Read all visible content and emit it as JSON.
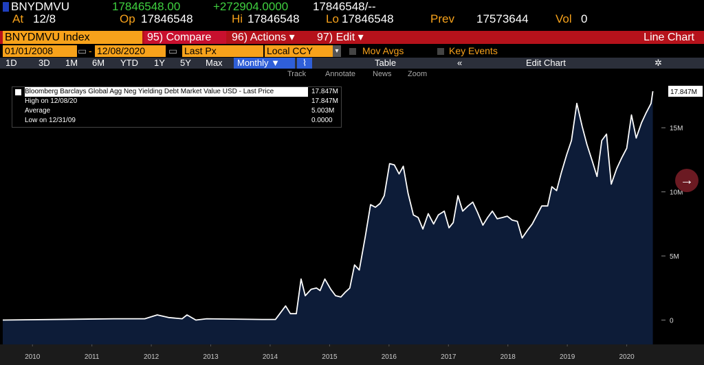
{
  "header": {
    "ticker": "BNYDMVU",
    "last": "17846548.00",
    "change": "+272904.0000",
    "bid_ask": "17846548/--",
    "at_label": "At",
    "at": "12/8",
    "op_label": "Op",
    "op": "17846548",
    "hi_label": "Hi",
    "hi": "17846548",
    "lo_label": "Lo",
    "lo": "17846548",
    "prev_label": "Prev",
    "prev": "17573644",
    "vol_label": "Vol",
    "vol": "0"
  },
  "menu": {
    "security": "BNYDMVU Index",
    "compare": "95) Compare",
    "actions": "96) Actions ▾",
    "edit": "97) Edit ▾",
    "view": "Line Chart"
  },
  "settings": {
    "start": "01/01/2008",
    "end": "12/08/2020",
    "field": "Last Px",
    "currency": "Local CCY",
    "mov_avgs": "Mov Avgs",
    "key_events": "Key Events"
  },
  "toolbar": {
    "ranges": [
      "1D",
      "3D",
      "1M",
      "6M",
      "YTD",
      "1Y",
      "5Y",
      "Max"
    ],
    "period": "Monthly ▼",
    "table": "Table",
    "edit_chart": "Edit Chart"
  },
  "tools": [
    "Track",
    "Annotate",
    "News",
    "Zoom"
  ],
  "chart_data": {
    "type": "area",
    "legend": {
      "title": "Bloomberg Barclays Global Agg Neg Yielding Debt Market Value USD - Last Price",
      "title_value": "17.847M",
      "rows": [
        {
          "label": "High on 12/08/20",
          "value": "17.847M"
        },
        {
          "label": "Average",
          "value": "5.003M"
        },
        {
          "label": "Low on 12/31/09",
          "value": "0.0000"
        }
      ]
    },
    "last_label": "17.847M",
    "line_color": "#ffffff",
    "fill_color": "#0d1c38",
    "x": [
      2010.0,
      2011.87,
      2012.39,
      2012.6,
      2012.79,
      2013.02,
      2013.1,
      2013.25,
      2013.43,
      2014.36,
      2014.59,
      2014.76,
      2014.84,
      2014.94,
      2015.02,
      2015.09,
      2015.19,
      2015.28,
      2015.34,
      2015.42,
      2015.52,
      2015.6,
      2015.69,
      2015.77,
      2015.84,
      2015.92,
      2016.0,
      2016.1,
      2016.19,
      2016.27,
      2016.35,
      2016.42,
      2016.51,
      2016.59,
      2016.67,
      2016.74,
      2016.82,
      2016.91,
      2016.99,
      2017.07,
      2017.16,
      2017.25,
      2017.33,
      2017.43,
      2017.51,
      2017.58,
      2017.66,
      2017.74,
      2017.83,
      2017.91,
      2017.99,
      2018.08,
      2018.16,
      2018.24,
      2018.32,
      2018.41,
      2018.49,
      2018.57,
      2018.66,
      2018.74,
      2018.83,
      2018.91,
      2018.99,
      2019.07,
      2019.17,
      2019.24,
      2019.32,
      2019.4,
      2019.49,
      2019.57,
      2019.66,
      2019.75,
      2019.83,
      2019.92,
      2020.0,
      2020.08,
      2020.16,
      2020.24,
      2020.33,
      2020.41,
      2020.5,
      2020.58,
      2020.66,
      2020.75,
      2020.82,
      2020.91,
      2020.94
    ],
    "values": [
      0,
      100000,
      100000,
      400000,
      200000,
      100000,
      400000,
      0,
      100000,
      50000,
      50000,
      1100000,
      500000,
      500000,
      3200000,
      1900000,
      2400000,
      2500000,
      2300000,
      3200000,
      2400000,
      1900000,
      1800000,
      2200000,
      2500000,
      4300000,
      3900000,
      6500000,
      9000000,
      8800000,
      9100000,
      9700000,
      12200000,
      12100000,
      11400000,
      12000000,
      9900000,
      8200000,
      8000000,
      7100000,
      8300000,
      7500000,
      8200000,
      8500000,
      7200000,
      7600000,
      9700000,
      8500000,
      8900000,
      9200000,
      8400000,
      7400000,
      8000000,
      8500000,
      7900000,
      8000000,
      8100000,
      7800000,
      7700000,
      6400000,
      7000000,
      7500000,
      8200000,
      8900000,
      8900000,
      10400000,
      10100000,
      11500000,
      12900000,
      14000000,
      16900000,
      15100000,
      13700000,
      12400000,
      11200000,
      14000000,
      14500000,
      10600000,
      11800000,
      12600000,
      13400000,
      16000000,
      14200000,
      15400000,
      16100000,
      16900000,
      17846548
    ],
    "xlim": [
      2010,
      2021.06
    ],
    "xticks": [
      {
        "value": 2010.5,
        "label": "2010"
      },
      {
        "value": 2011.5,
        "label": "2011"
      },
      {
        "value": 2012.5,
        "label": "2012"
      },
      {
        "value": 2013.5,
        "label": "2013"
      },
      {
        "value": 2014.5,
        "label": "2014"
      },
      {
        "value": 2015.5,
        "label": "2015"
      },
      {
        "value": 2016.5,
        "label": "2016"
      },
      {
        "value": 2017.5,
        "label": "2017"
      },
      {
        "value": 2018.5,
        "label": "2018"
      },
      {
        "value": 2019.5,
        "label": "2019"
      },
      {
        "value": 2020.5,
        "label": "2020"
      }
    ],
    "ylim": [
      -1900000,
      18650000
    ],
    "yticks": [
      0,
      {
        "value": 5000000,
        "label": "5M"
      },
      {
        "value": 10000000,
        "label": "10M"
      },
      {
        "value": 15000000,
        "label": "15M"
      }
    ]
  }
}
